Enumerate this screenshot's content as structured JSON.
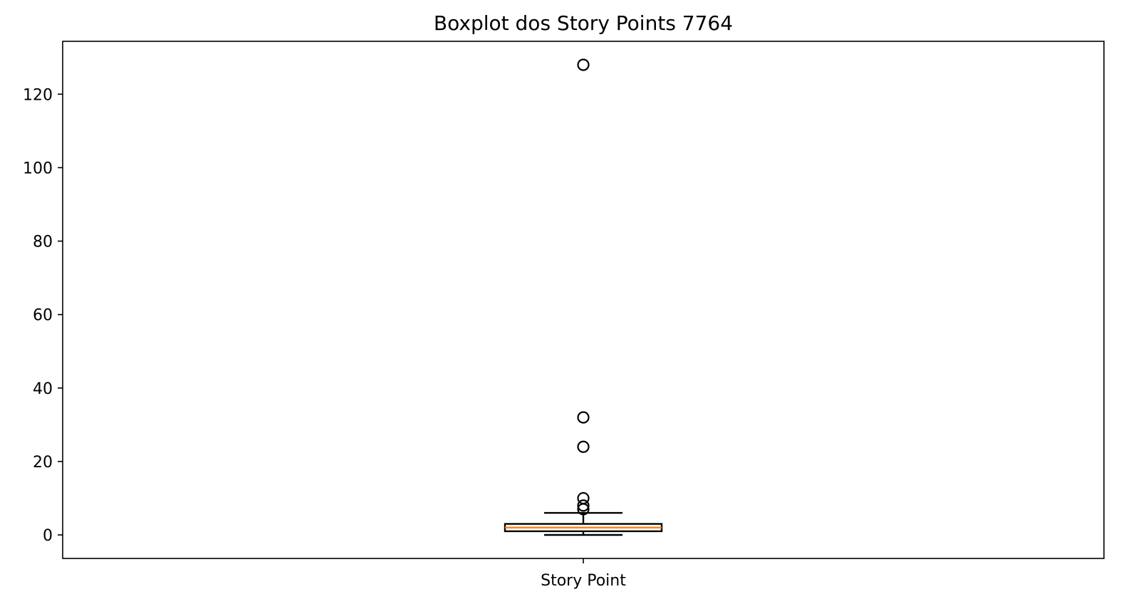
{
  "chart_data": {
    "type": "boxplot",
    "title": "Boxplot dos Story Points 7764",
    "categories": [
      "Story Point"
    ],
    "ylim": [
      -6.4,
      134.4
    ],
    "yticks": [
      0,
      20,
      40,
      60,
      80,
      100,
      120
    ],
    "grid": false,
    "boxes": [
      {
        "name": "Story Point",
        "whisker_low": 0,
        "q1": 1,
        "median": 2,
        "q3": 3,
        "whisker_high": 6,
        "outliers": [
          7,
          8,
          10,
          24,
          32,
          128
        ]
      }
    ],
    "colors": {
      "box": "#000000",
      "median": "#ff7f0e",
      "axes": "#000000"
    }
  }
}
